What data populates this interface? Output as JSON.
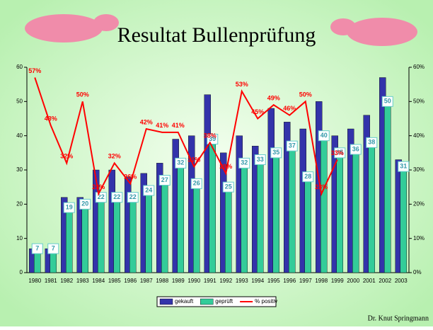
{
  "chart_data": {
    "type": "bar",
    "title": "Resultat Bullenprüfung",
    "footer": "Dr. Knut Springmann",
    "categories": [
      "1980",
      "1981",
      "1982",
      "1983",
      "1984",
      "1985",
      "1986",
      "1987",
      "1988",
      "1989",
      "1990",
      "1991",
      "1992",
      "1993",
      "1994",
      "1995",
      "1996",
      "1997",
      "1998",
      "1999",
      "2000",
      "2001",
      "2002",
      "2003"
    ],
    "series": [
      {
        "name": "gekauft",
        "color": "#3333aa",
        "values": [
          7,
          7,
          22,
          22,
          30,
          30,
          28,
          29,
          32,
          39,
          40,
          52,
          35,
          40,
          37,
          48,
          44,
          42,
          50,
          40,
          42,
          46,
          57,
          33
        ]
      },
      {
        "name": "geprüft",
        "color": "#33cc99",
        "values": [
          7,
          7,
          19,
          20,
          22,
          22,
          22,
          24,
          27,
          32,
          26,
          39,
          25,
          32,
          33,
          35,
          37,
          28,
          40,
          35,
          36,
          38,
          50,
          31
        ]
      },
      {
        "name": "% positiv",
        "color": "#ff0000",
        "axis": "y2",
        "type": "line",
        "values": [
          57,
          43,
          32,
          50,
          23,
          32,
          26,
          42,
          41,
          41,
          31,
          38,
          29,
          53,
          45,
          49,
          46,
          50,
          23,
          33,
          null,
          null,
          null,
          null
        ],
        "value_labels": [
          "57%",
          "43%",
          "32%",
          "50%",
          "23%",
          "32%",
          "26%",
          "42%",
          "41%",
          "41%",
          "31%",
          "38%",
          "29%",
          "53%",
          "45%",
          "49%",
          "46%",
          "50%",
          "23%",
          "33%",
          null,
          null,
          null,
          null
        ]
      }
    ],
    "ylim": [
      0,
      60
    ],
    "yticks": [
      0,
      10,
      20,
      30,
      40,
      50,
      60
    ],
    "y2lim": [
      0,
      60
    ],
    "y2ticks": [
      {
        "value": 0,
        "label": "0%"
      },
      {
        "value": 10,
        "label": "10%"
      },
      {
        "value": 20,
        "label": "20%"
      },
      {
        "value": 30,
        "label": "30%"
      },
      {
        "value": 40,
        "label": "40%"
      },
      {
        "value": 50,
        "label": "50%"
      },
      {
        "value": 60,
        "label": "60%"
      }
    ],
    "legend": "bottom"
  }
}
